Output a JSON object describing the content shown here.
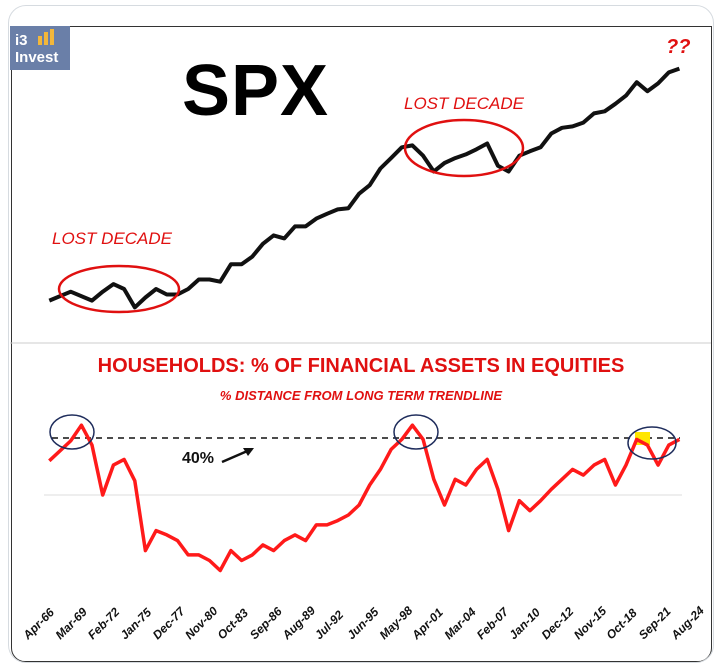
{
  "logo": {
    "line1": "i3",
    "line2": "Invest"
  },
  "chart_data": [
    {
      "type": "line",
      "title": "SPX",
      "annotations": [
        "LOST DECADE",
        "LOST DECADE",
        "??"
      ],
      "yscale": "log",
      "x": [
        1966,
        1968,
        1970,
        1971,
        1972,
        1973,
        1974,
        1975,
        1976,
        1977,
        1978,
        1979,
        1980,
        1981,
        1982,
        1983,
        1984,
        1985,
        1986,
        1987,
        1988,
        1989,
        1990,
        1991,
        1992,
        1993,
        1994,
        1995,
        1996,
        1997,
        1998,
        1999,
        2000,
        2001,
        2002,
        2003,
        2004,
        2005,
        2006,
        2007,
        2008,
        2009,
        2010,
        2011,
        2012,
        2013,
        2014,
        2015,
        2016,
        2017,
        2018,
        2019,
        2020,
        2021,
        2022,
        2023,
        2024,
        2025
      ],
      "values": [
        85,
        100,
        85,
        100,
        115,
        105,
        75,
        90,
        105,
        95,
        95,
        105,
        125,
        125,
        120,
        165,
        165,
        190,
        240,
        280,
        265,
        330,
        330,
        380,
        415,
        450,
        460,
        600,
        700,
        950,
        1150,
        1400,
        1450,
        1200,
        900,
        1050,
        1150,
        1230,
        1350,
        1500,
        1000,
        900,
        1200,
        1300,
        1400,
        1800,
        2000,
        2050,
        2200,
        2600,
        2700,
        3100,
        3600,
        4600,
        3900,
        4500,
        5500,
        5900
      ],
      "color": "#111111"
    },
    {
      "type": "line",
      "title": "HOUSEHOLDS: % OF FINANCIAL ASSETS IN EQUITIES",
      "subtitle": "% DISTANCE FROM LONG TERM TRENDLINE",
      "reference_line": {
        "value": 40,
        "label": "40%"
      },
      "x_tick_labels": [
        "Apr-66",
        "Mar-69",
        "Feb-72",
        "Jan-75",
        "Dec-77",
        "Nov-80",
        "Oct-83",
        "Sep-86",
        "Aug-89",
        "Jul-92",
        "Jun-95",
        "May-98",
        "Apr-01",
        "Mar-04",
        "Feb-07",
        "Jan-10",
        "Dec-12",
        "Nov-15",
        "Oct-18",
        "Sep-21",
        "Aug-24"
      ],
      "x": [
        1966,
        1968,
        1969,
        1970,
        1971,
        1972,
        1973,
        1974,
        1975,
        1976,
        1977,
        1978,
        1979,
        1980,
        1981,
        1982,
        1983,
        1984,
        1985,
        1986,
        1987,
        1988,
        1989,
        1990,
        1991,
        1992,
        1993,
        1994,
        1995,
        1996,
        1997,
        1998,
        1999,
        2000,
        2001,
        2002,
        2003,
        2004,
        2005,
        2006,
        2007,
        2008,
        2009,
        2010,
        2011,
        2012,
        2013,
        2014,
        2015,
        2016,
        2017,
        2018,
        2019,
        2020,
        2021,
        2022,
        2023,
        2024,
        2025
      ],
      "values": [
        24,
        38,
        49,
        35,
        0,
        21,
        25,
        10,
        -39,
        -25,
        -28,
        -32,
        -42,
        -42,
        -46,
        -53,
        -39,
        -46,
        -42,
        -35,
        -39,
        -32,
        -28,
        -32,
        -21,
        -21,
        -18,
        -14,
        -7,
        7,
        18,
        32,
        39,
        49,
        39,
        11,
        -7,
        11,
        7,
        18,
        25,
        4,
        -25,
        -4,
        -11,
        -4,
        4,
        11,
        18,
        14,
        21,
        25,
        7,
        21,
        39,
        35,
        21,
        35,
        39
      ],
      "ylim": [
        -60,
        55
      ],
      "color": "#ff1a1a"
    }
  ]
}
